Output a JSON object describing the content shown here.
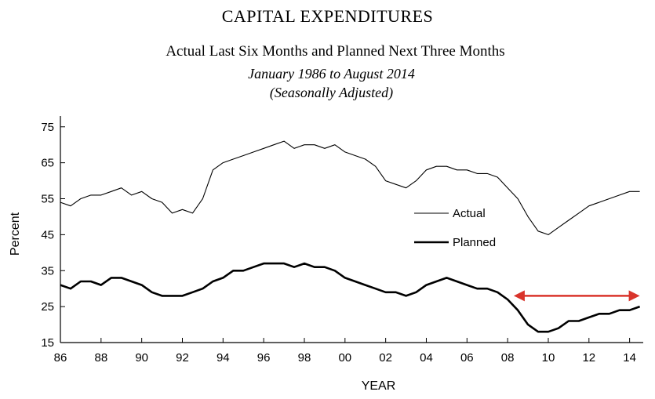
{
  "chart_data": {
    "type": "line",
    "title": "CAPITAL EXPENDITURES",
    "subtitle": "Actual Last Six Months and Planned Next Three Months",
    "date_range": "January 1986 to August 2014",
    "adjustment": "(Seasonally Adjusted)",
    "xlabel": "YEAR",
    "ylabel": "Percent",
    "xlim": [
      1986,
      2014.67
    ],
    "ylim": [
      15,
      78
    ],
    "x_ticks": [
      {
        "value": 1986,
        "label": "86"
      },
      {
        "value": 1988,
        "label": "88"
      },
      {
        "value": 1990,
        "label": "90"
      },
      {
        "value": 1992,
        "label": "92"
      },
      {
        "value": 1994,
        "label": "94"
      },
      {
        "value": 1996,
        "label": "96"
      },
      {
        "value": 1998,
        "label": "98"
      },
      {
        "value": 2000,
        "label": "00"
      },
      {
        "value": 2002,
        "label": "02"
      },
      {
        "value": 2004,
        "label": "04"
      },
      {
        "value": 2006,
        "label": "06"
      },
      {
        "value": 2008,
        "label": "08"
      },
      {
        "value": 2010,
        "label": "10"
      },
      {
        "value": 2012,
        "label": "12"
      },
      {
        "value": 2014,
        "label": "14"
      }
    ],
    "y_ticks": [
      15,
      25,
      35,
      45,
      55,
      65,
      75
    ],
    "legend_placement": "right, between series",
    "annotation": {
      "type": "double-arrow",
      "color": "#d9342b",
      "x_start": 2008.3,
      "x_end": 2014.5,
      "y": 28
    },
    "series": [
      {
        "name": "Actual",
        "style": "thin",
        "x": [
          1986,
          1986.5,
          1987,
          1987.5,
          1988,
          1988.5,
          1989,
          1989.5,
          1990,
          1990.5,
          1991,
          1991.5,
          1992,
          1992.5,
          1993,
          1993.5,
          1994,
          1994.5,
          1995,
          1995.5,
          1996,
          1996.5,
          1997,
          1997.5,
          1998,
          1998.5,
          1999,
          1999.5,
          2000,
          2000.5,
          2001,
          2001.5,
          2002,
          2002.5,
          2003,
          2003.5,
          2004,
          2004.5,
          2005,
          2005.5,
          2006,
          2006.5,
          2007,
          2007.5,
          2008,
          2008.5,
          2009,
          2009.5,
          2010,
          2010.5,
          2011,
          2011.5,
          2012,
          2012.5,
          2013,
          2013.5,
          2014,
          2014.5
        ],
        "values": [
          54,
          53,
          55,
          56,
          56,
          57,
          58,
          56,
          57,
          55,
          54,
          51,
          52,
          51,
          55,
          63,
          65,
          66,
          67,
          68,
          69,
          70,
          71,
          69,
          70,
          70,
          69,
          70,
          68,
          67,
          66,
          64,
          60,
          59,
          58,
          60,
          63,
          64,
          64,
          63,
          63,
          62,
          62,
          61,
          58,
          55,
          50,
          46,
          45,
          47,
          49,
          51,
          53,
          54,
          55,
          56,
          57,
          57
        ]
      },
      {
        "name": "Planned",
        "style": "thick",
        "x": [
          1986,
          1986.5,
          1987,
          1987.5,
          1988,
          1988.5,
          1989,
          1989.5,
          1990,
          1990.5,
          1991,
          1991.5,
          1992,
          1992.5,
          1993,
          1993.5,
          1994,
          1994.5,
          1995,
          1995.5,
          1996,
          1996.5,
          1997,
          1997.5,
          1998,
          1998.5,
          1999,
          1999.5,
          2000,
          2000.5,
          2001,
          2001.5,
          2002,
          2002.5,
          2003,
          2003.5,
          2004,
          2004.5,
          2005,
          2005.5,
          2006,
          2006.5,
          2007,
          2007.5,
          2008,
          2008.5,
          2009,
          2009.5,
          2010,
          2010.5,
          2011,
          2011.5,
          2012,
          2012.5,
          2013,
          2013.5,
          2014,
          2014.5
        ],
        "values": [
          31,
          30,
          32,
          32,
          31,
          33,
          33,
          32,
          31,
          29,
          28,
          28,
          28,
          29,
          30,
          32,
          33,
          35,
          35,
          36,
          37,
          37,
          37,
          36,
          37,
          36,
          36,
          35,
          33,
          32,
          31,
          30,
          29,
          29,
          28,
          29,
          31,
          32,
          33,
          32,
          31,
          30,
          30,
          29,
          27,
          24,
          20,
          18,
          18,
          19,
          21,
          21,
          22,
          23,
          23,
          24,
          24,
          25
        ]
      }
    ]
  }
}
